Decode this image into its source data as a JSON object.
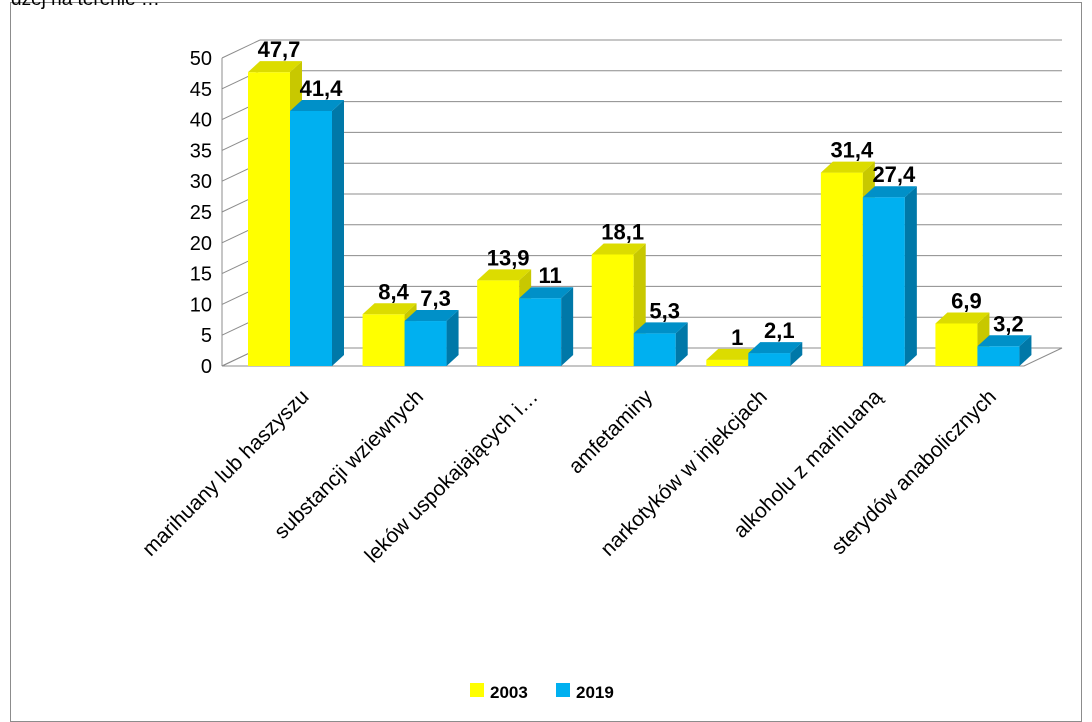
{
  "top_text": "dzej na terenie …",
  "chart_data": {
    "type": "bar",
    "title": "",
    "xlabel": "",
    "ylabel": "",
    "ylim": [
      0,
      50
    ],
    "yticks": [
      0,
      5,
      10,
      15,
      20,
      25,
      30,
      35,
      40,
      45,
      50
    ],
    "ytick_labels": [
      "0",
      "5",
      "10",
      "15",
      "20",
      "25",
      "30",
      "35",
      "40",
      "45",
      "50"
    ],
    "categories": [
      "marihuany lub haszyszu",
      "substancji wziewnych",
      "leków uspokajających i…",
      "amfetaminy",
      "narkotyków w injekcjach",
      "alkoholu z marihuaną",
      "sterydów anabolicznych"
    ],
    "series": [
      {
        "name": "2003",
        "values": [
          47.7,
          8.4,
          13.9,
          18.1,
          1,
          31.4,
          6.9
        ],
        "labels": [
          "47,7",
          "8,4",
          "13,9",
          "18,1",
          "1",
          "31,4",
          "6,9"
        ],
        "color": "#FFFF00",
        "side_color": "#C8C800",
        "top_color": "#DCDC00"
      },
      {
        "name": "2019",
        "values": [
          41.4,
          7.3,
          11,
          5.3,
          2.1,
          27.4,
          3.2
        ],
        "labels": [
          "41,4",
          "7,3",
          "11",
          "5,3",
          "2,1",
          "27,4",
          "3,2"
        ],
        "color": "#00B0F0",
        "side_color": "#0078A8",
        "top_color": "#0090C8"
      }
    ],
    "grid": true,
    "style": "3d-bar",
    "legend_position": "bottom"
  }
}
